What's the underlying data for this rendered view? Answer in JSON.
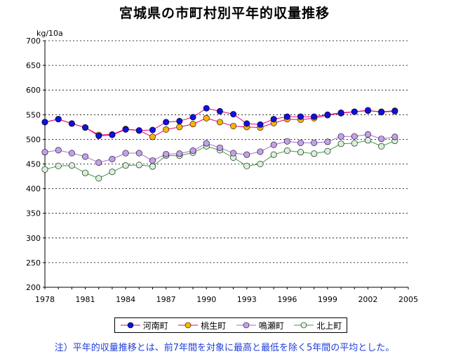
{
  "chart_data": {
    "type": "line",
    "title": "宮城県の市町村別平年的収量推移",
    "ylabel": "kg/10a",
    "xlabel": "",
    "xlim": [
      1978,
      2005
    ],
    "ylim": [
      200,
      700
    ],
    "x_ticks": [
      1978,
      1981,
      1984,
      1987,
      1990,
      1993,
      1996,
      1999,
      2002,
      2005
    ],
    "y_ticks": [
      200,
      250,
      300,
      350,
      400,
      450,
      500,
      550,
      600,
      650,
      700
    ],
    "grid": "horizontal dotted",
    "legend_position": "bottom",
    "series": [
      {
        "name": "河南町",
        "line_color": "#e6007e",
        "marker_fill": "#1010e0",
        "x": [
          1978,
          1979,
          1980,
          1981,
          1982,
          1983,
          1984,
          1985,
          1986,
          1987,
          1988,
          1989,
          1990,
          1991,
          1992,
          1993,
          1994,
          1995,
          1996,
          1997,
          1998,
          1999,
          2000,
          2001,
          2002,
          2003,
          2004
        ],
        "values": [
          535,
          541,
          532,
          524,
          507,
          509,
          520,
          518,
          519,
          535,
          537,
          545,
          563,
          557,
          551,
          532,
          530,
          541,
          546,
          546,
          546,
          550,
          554,
          556,
          559,
          555,
          557
        ]
      },
      {
        "name": "桃生町",
        "line_color": "#e6007e",
        "marker_fill": "#ffb300",
        "x": [
          1978,
          1979,
          1980,
          1981,
          1982,
          1983,
          1984,
          1985,
          1986,
          1987,
          1988,
          1989,
          1990,
          1991,
          1992,
          1993,
          1994,
          1995,
          1996,
          1997,
          1998,
          1999,
          2000,
          2001,
          2002,
          2003,
          2004
        ],
        "values": [
          535,
          541,
          532,
          524,
          509,
          510,
          521,
          518,
          505,
          520,
          525,
          531,
          543,
          535,
          527,
          525,
          524,
          533,
          541,
          540,
          543,
          549,
          553,
          556,
          558,
          556,
          558
        ]
      },
      {
        "name": "鳴瀬町",
        "line_color": "#a070d0",
        "marker_fill": "#c4a0ec",
        "x": [
          1978,
          1979,
          1980,
          1981,
          1982,
          1983,
          1984,
          1985,
          1986,
          1987,
          1988,
          1989,
          1990,
          1991,
          1992,
          1993,
          1994,
          1995,
          1996,
          1997,
          1998,
          1999,
          2000,
          2001,
          2002,
          2003,
          2004
        ],
        "values": [
          474,
          478,
          472,
          465,
          453,
          460,
          472,
          472,
          457,
          470,
          471,
          477,
          492,
          483,
          472,
          469,
          475,
          489,
          496,
          493,
          493,
          495,
          506,
          506,
          510,
          501,
          505
        ]
      },
      {
        "name": "北上町",
        "line_color": "#3aa03a",
        "marker_fill": "#d8f2d8",
        "x": [
          1978,
          1979,
          1980,
          1981,
          1982,
          1983,
          1984,
          1985,
          1986,
          1987,
          1988,
          1989,
          1990,
          1991,
          1992,
          1993,
          1994,
          1995,
          1996,
          1997,
          1998,
          1999,
          2000,
          2001,
          2002,
          2003,
          2004
        ],
        "values": [
          439,
          446,
          447,
          432,
          421,
          434,
          447,
          448,
          445,
          467,
          467,
          473,
          486,
          478,
          463,
          446,
          450,
          469,
          477,
          474,
          471,
          476,
          491,
          492,
          498,
          486,
          497
        ]
      }
    ]
  },
  "legend": {
    "items": [
      "河南町",
      "桃生町",
      "鳴瀬町",
      "北上町"
    ]
  },
  "footnote": "注）平年的収量推移とは、前7年間を対象に最高と最低を除く5年間の平均とした。"
}
